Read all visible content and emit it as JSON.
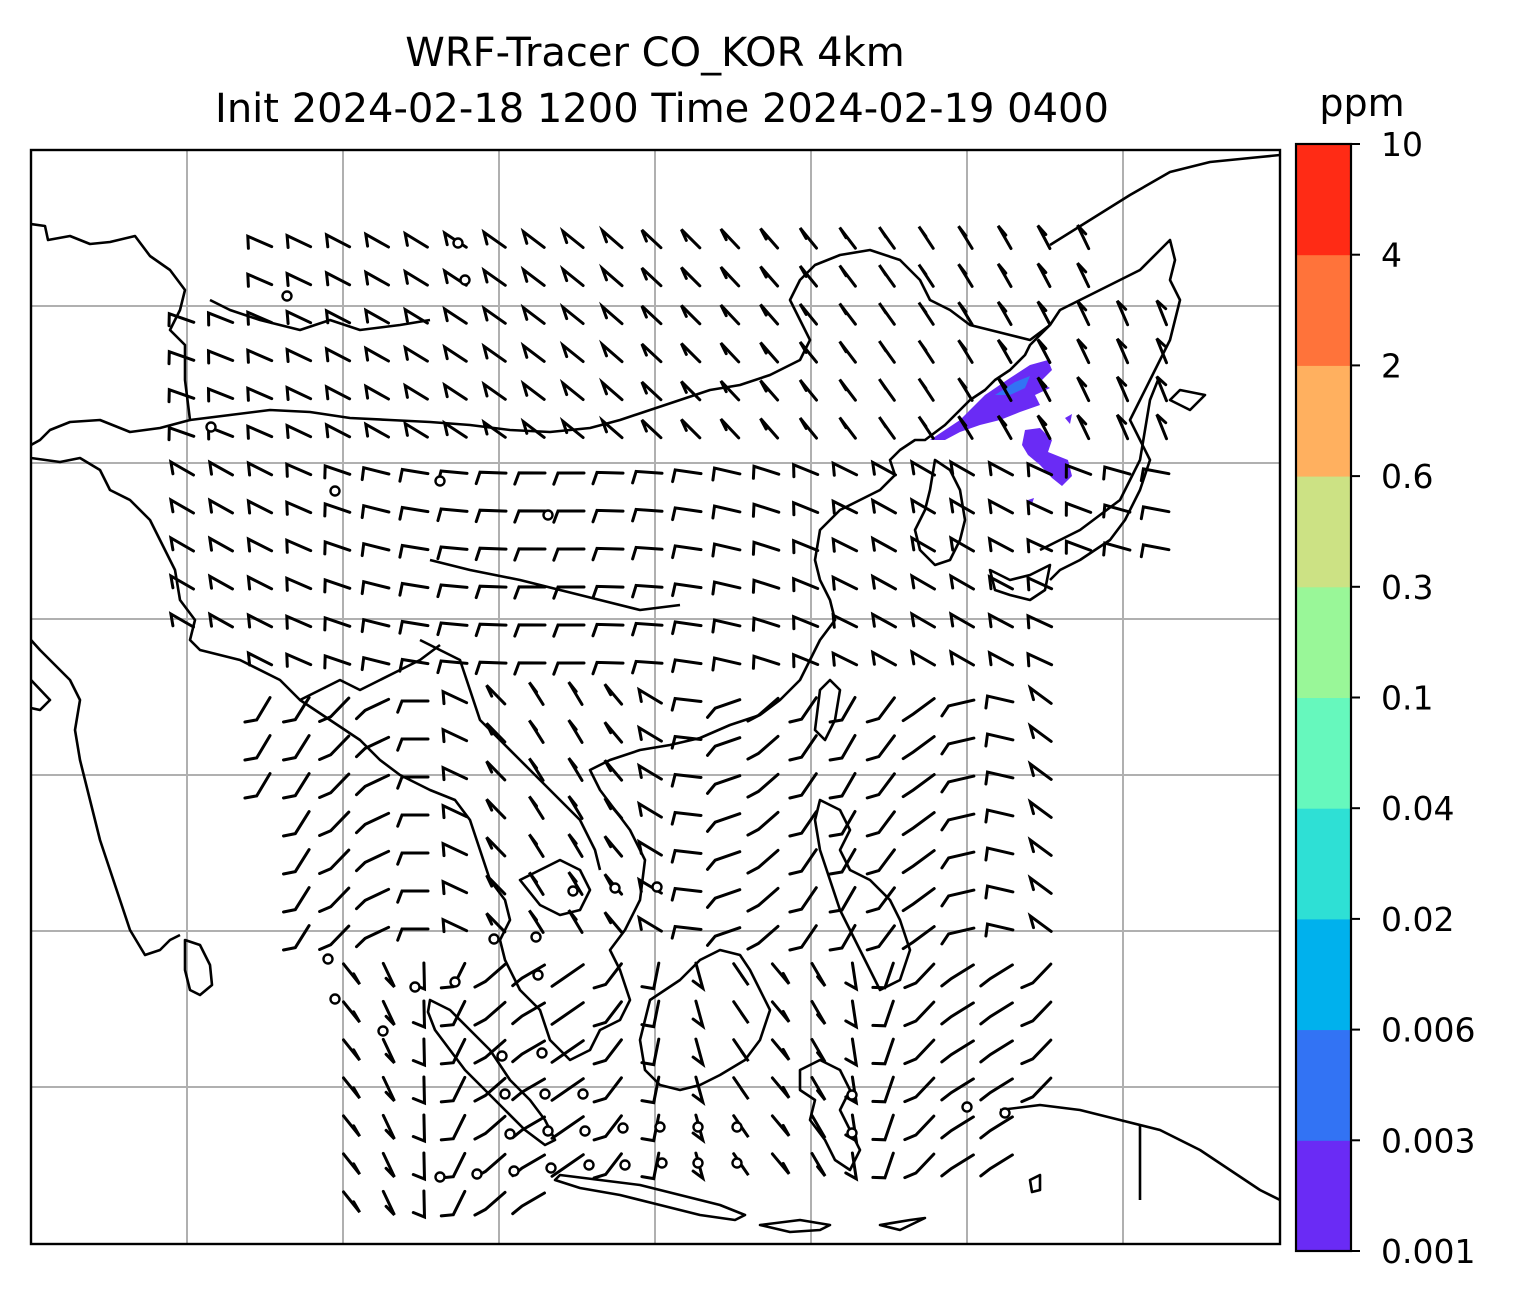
{
  "title": {
    "line1": "WRF-Tracer CO_KOR 4km",
    "line2": "Init 2024-02-18 1200 Time 2024-02-19 0400"
  },
  "colorbar": {
    "unit": "ppm",
    "levels": [
      "0.001",
      "0.003",
      "0.006",
      "0.02",
      "0.04",
      "0.1",
      "0.3",
      "0.6",
      "2",
      "4",
      "10"
    ],
    "colors": [
      "#6a2bf5",
      "#3273f4",
      "#00b1ed",
      "#2ee0d5",
      "#66f8bd",
      "#99f798",
      "#cce284",
      "#ffb05f",
      "#ff733a",
      "#ff2b15"
    ]
  },
  "map": {
    "gridlines": true,
    "coastlines": true,
    "plume_color": "#6a2bf5",
    "barb_color": "#000000"
  }
}
